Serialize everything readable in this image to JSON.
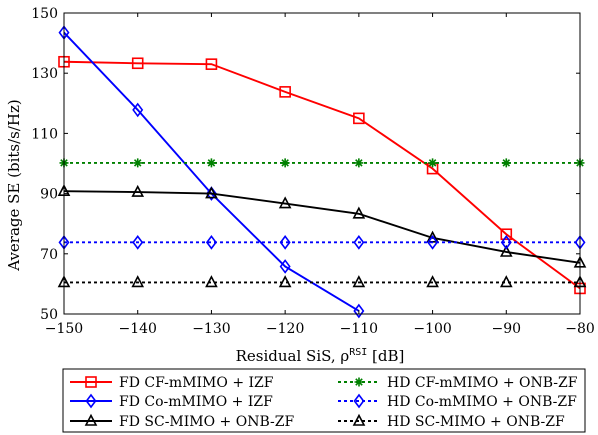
{
  "chart_data": {
    "type": "line",
    "xlabel": "Residual SiS, ρ",
    "xlabel_sup": "RSI",
    "xlabel_unit": " [dB]",
    "ylabel": "Average SE (bits/s/Hz)",
    "xlim": [
      -150,
      -80
    ],
    "ylim": [
      50,
      150
    ],
    "x_ticks": [
      -150,
      -140,
      -130,
      -120,
      -110,
      -100,
      -90,
      -80
    ],
    "y_ticks": [
      50,
      70,
      90,
      110,
      130,
      150
    ],
    "x_tick_labels": [
      "−150",
      "−140",
      "−130",
      "−120",
      "−110",
      "−100",
      "−90",
      "−80"
    ],
    "y_tick_labels": [
      "50",
      "70",
      "90",
      "110",
      "130",
      "150"
    ],
    "grid": false,
    "legend_position": "bottom",
    "series": [
      {
        "name": "FD CF-mMIMO + IZF",
        "color": "#ff0000",
        "dash": "solid",
        "marker": "square",
        "x": [
          -150,
          -140,
          -130,
          -120,
          -110,
          -100,
          -90,
          -80
        ],
        "y": [
          133.8,
          133.3,
          133.0,
          123.8,
          115.0,
          98.3,
          76.5,
          58.5
        ]
      },
      {
        "name": "FD Co-mMIMO + IZF",
        "color": "#0000ff",
        "dash": "solid",
        "marker": "diamond",
        "x": [
          -150,
          -140,
          -130,
          -120,
          -110
        ],
        "y": [
          143.5,
          117.8,
          90.0,
          65.8,
          51.0
        ]
      },
      {
        "name": "FD SC-MIMO + ONB-ZF",
        "color": "#000000",
        "dash": "solid",
        "marker": "triangle",
        "x": [
          -150,
          -140,
          -130,
          -120,
          -110,
          -100,
          -90,
          -80
        ],
        "y": [
          90.8,
          90.5,
          90.0,
          86.7,
          83.3,
          75.3,
          70.6,
          67.0
        ]
      },
      {
        "name": "HD CF-mMIMO + ONB-ZF",
        "color": "#008000",
        "dash": "dotted",
        "marker": "asterisk",
        "x": [
          -150,
          -140,
          -130,
          -120,
          -110,
          -100,
          -90,
          -80
        ],
        "y": [
          100.2,
          100.2,
          100.2,
          100.2,
          100.2,
          100.2,
          100.2,
          100.2
        ]
      },
      {
        "name": "HD Co-mMIMO + ONB-ZF",
        "color": "#0000ff",
        "dash": "dotted",
        "marker": "diamond",
        "x": [
          -150,
          -140,
          -130,
          -120,
          -110,
          -100,
          -90,
          -80
        ],
        "y": [
          73.8,
          73.8,
          73.8,
          73.8,
          73.8,
          73.8,
          73.8,
          73.8
        ]
      },
      {
        "name": "HD SC-MIMO + ONB-ZF",
        "color": "#000000",
        "dash": "dotted",
        "marker": "triangle",
        "x": [
          -150,
          -140,
          -130,
          -120,
          -110,
          -100,
          -90,
          -80
        ],
        "y": [
          60.5,
          60.5,
          60.5,
          60.5,
          60.5,
          60.5,
          60.5,
          60.5
        ]
      }
    ]
  }
}
